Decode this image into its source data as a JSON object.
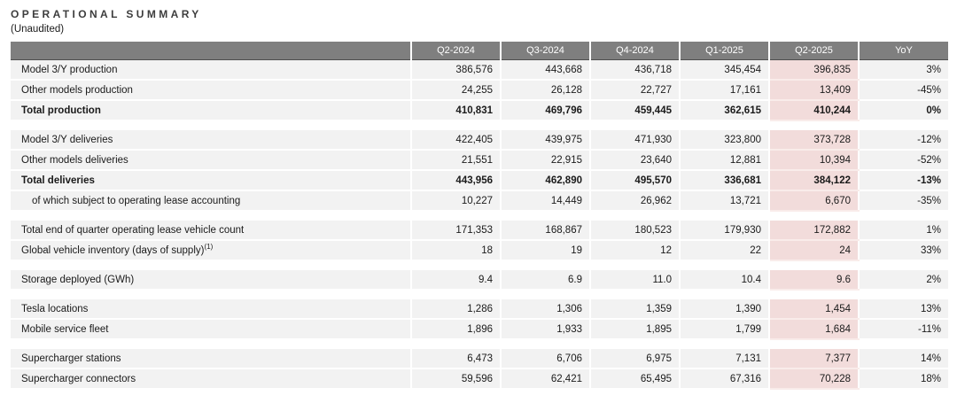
{
  "page": {
    "title": "OPERATIONAL SUMMARY",
    "subtitle": "(Unaudited)"
  },
  "colors": {
    "header_bg": "#7f7f7f",
    "header_text": "#ffffff",
    "row_bg": "#f2f2f2",
    "highlight_bg": "#f2dcdb",
    "text": "#1a1a1a"
  },
  "table": {
    "columns": [
      "Q2-2024",
      "Q3-2024",
      "Q4-2024",
      "Q1-2025",
      "Q2-2025",
      "YoY"
    ],
    "highlight_column": "Q2-2025",
    "sections": [
      {
        "rows": [
          {
            "label": "Model 3/Y production",
            "values": [
              "386,576",
              "443,668",
              "436,718",
              "345,454",
              "396,835"
            ],
            "yoy": "3%",
            "bold": false,
            "indent": false,
            "sup": ""
          },
          {
            "label": "Other models production",
            "values": [
              "24,255",
              "26,128",
              "22,727",
              "17,161",
              "13,409"
            ],
            "yoy": "-45%",
            "bold": false,
            "indent": false,
            "sup": ""
          },
          {
            "label": "Total production",
            "values": [
              "410,831",
              "469,796",
              "459,445",
              "362,615",
              "410,244"
            ],
            "yoy": "0%",
            "bold": true,
            "indent": false,
            "sup": ""
          }
        ]
      },
      {
        "rows": [
          {
            "label": "Model 3/Y deliveries",
            "values": [
              "422,405",
              "439,975",
              "471,930",
              "323,800",
              "373,728"
            ],
            "yoy": "-12%",
            "bold": false,
            "indent": false,
            "sup": ""
          },
          {
            "label": "Other models deliveries",
            "values": [
              "21,551",
              "22,915",
              "23,640",
              "12,881",
              "10,394"
            ],
            "yoy": "-52%",
            "bold": false,
            "indent": false,
            "sup": ""
          },
          {
            "label": "Total deliveries",
            "values": [
              "443,956",
              "462,890",
              "495,570",
              "336,681",
              "384,122"
            ],
            "yoy": "-13%",
            "bold": true,
            "indent": false,
            "sup": ""
          },
          {
            "label": "of which subject to operating lease accounting",
            "values": [
              "10,227",
              "14,449",
              "26,962",
              "13,721",
              "6,670"
            ],
            "yoy": "-35%",
            "bold": false,
            "indent": true,
            "sup": ""
          }
        ]
      },
      {
        "rows": [
          {
            "label": "Total end of quarter operating lease vehicle count",
            "values": [
              "171,353",
              "168,867",
              "180,523",
              "179,930",
              "172,882"
            ],
            "yoy": "1%",
            "bold": false,
            "indent": false,
            "sup": ""
          },
          {
            "label": "Global vehicle inventory (days of supply)",
            "values": [
              "18",
              "19",
              "12",
              "22",
              "24"
            ],
            "yoy": "33%",
            "bold": false,
            "indent": false,
            "sup": "(1)"
          }
        ]
      },
      {
        "rows": [
          {
            "label": "Storage deployed (GWh)",
            "values": [
              "9.4",
              "6.9",
              "11.0",
              "10.4",
              "9.6"
            ],
            "yoy": "2%",
            "bold": false,
            "indent": false,
            "sup": ""
          }
        ]
      },
      {
        "rows": [
          {
            "label": "Tesla locations",
            "values": [
              "1,286",
              "1,306",
              "1,359",
              "1,390",
              "1,454"
            ],
            "yoy": "13%",
            "bold": false,
            "indent": false,
            "sup": ""
          },
          {
            "label": "Mobile service fleet",
            "values": [
              "1,896",
              "1,933",
              "1,895",
              "1,799",
              "1,684"
            ],
            "yoy": "-11%",
            "bold": false,
            "indent": false,
            "sup": ""
          }
        ]
      },
      {
        "rows": [
          {
            "label": "Supercharger stations",
            "values": [
              "6,473",
              "6,706",
              "6,975",
              "7,131",
              "7,377"
            ],
            "yoy": "14%",
            "bold": false,
            "indent": false,
            "sup": ""
          },
          {
            "label": "Supercharger connectors",
            "values": [
              "59,596",
              "62,421",
              "65,495",
              "67,316",
              "70,228"
            ],
            "yoy": "18%",
            "bold": false,
            "indent": false,
            "sup": ""
          }
        ]
      }
    ]
  }
}
